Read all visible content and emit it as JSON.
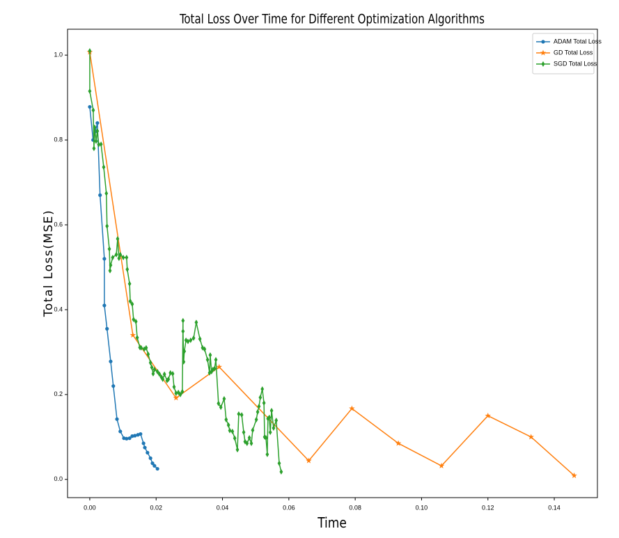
{
  "chart_data": {
    "type": "line",
    "title": "Total Loss Over Time for Different Optimization Algorithms",
    "xlabel": "Time",
    "ylabel": "Total Loss(MSE)",
    "xlim": [
      -0.0067,
      0.153
    ],
    "ylim": [
      -0.043,
      1.061
    ],
    "xticks": [
      {
        "value": 0,
        "label": "0.00"
      },
      {
        "value": 0.02,
        "label": "0.02"
      },
      {
        "value": 0.04,
        "label": "0.04"
      },
      {
        "value": 0.06,
        "label": "0.06"
      },
      {
        "value": 0.08,
        "label": "0.08"
      },
      {
        "value": 0.1,
        "label": "0.10"
      },
      {
        "value": 0.12,
        "label": "0.12"
      },
      {
        "value": 0.14,
        "label": "0.14"
      }
    ],
    "yticks": [
      {
        "value": 0,
        "label": "0.0"
      },
      {
        "value": 0.2,
        "label": "0.2"
      },
      {
        "value": 0.4,
        "label": "0.4"
      },
      {
        "value": 0.6,
        "label": "0.6"
      },
      {
        "value": 0.8,
        "label": "0.8"
      },
      {
        "value": 1,
        "label": "1.0"
      }
    ],
    "legend": "upper right",
    "series": [
      {
        "name": "ADAM Total Loss",
        "color": "#1f77b4",
        "marker": "circle",
        "x": [
          0,
          0.001,
          0.0017,
          0.0023,
          0.0031,
          0.0044,
          0.0044,
          0.0052,
          0.0063,
          0.0071,
          0.0082,
          0.0092,
          0.0103,
          0.0111,
          0.012,
          0.0128,
          0.0136,
          0.0145,
          0.0153,
          0.0162,
          0.0166,
          0.0174,
          0.0183,
          0.0189,
          0.0195,
          0.0204
        ],
        "values": [
          0.878,
          0.8,
          0.82,
          0.84,
          0.67,
          0.52,
          0.41,
          0.355,
          0.278,
          0.22,
          0.142,
          0.113,
          0.097,
          0.096,
          0.097,
          0.102,
          0.103,
          0.105,
          0.107,
          0.085,
          0.075,
          0.063,
          0.05,
          0.038,
          0.032,
          0.025
        ]
      },
      {
        "name": "GD Total Loss",
        "color": "#ff7f0e",
        "marker": "star",
        "x": [
          0,
          0.013,
          0.026,
          0.039,
          0.066,
          0.079,
          0.093,
          0.106,
          0.12,
          0.133,
          0.146
        ],
        "values": [
          1.007,
          0.34,
          0.192,
          0.265,
          0.044,
          0.167,
          0.085,
          0.032,
          0.15,
          0.1,
          0.009
        ]
      },
      {
        "name": "SGD Total Loss",
        "color": "#2ca02c",
        "marker": "diamond",
        "x": [
          0,
          0,
          0.00105,
          0.00126,
          0.00147,
          0.00189,
          0.0023,
          0.0027,
          0.0034,
          0.0042,
          0.005,
          0.0052,
          0.0059,
          0.0061,
          0.0063,
          0.0069,
          0.008,
          0.0084,
          0.0088,
          0.0092,
          0.0101,
          0.0111,
          0.0113,
          0.012,
          0.0122,
          0.0128,
          0.0132,
          0.0139,
          0.0143,
          0.0151,
          0.0155,
          0.0164,
          0.017,
          0.0176,
          0.0183,
          0.0187,
          0.0191,
          0.0195,
          0.0204,
          0.021,
          0.0216,
          0.022,
          0.0225,
          0.0233,
          0.0237,
          0.0243,
          0.025,
          0.0254,
          0.026,
          0.0267,
          0.0273,
          0.0279,
          0.0281,
          0.0281,
          0.0283,
          0.0285,
          0.029,
          0.0296,
          0.0304,
          0.0313,
          0.0321,
          0.0332,
          0.034,
          0.0346,
          0.0355,
          0.0361,
          0.0363,
          0.0367,
          0.0371,
          0.0376,
          0.038,
          0.0388,
          0.0395,
          0.0405,
          0.0411,
          0.0418,
          0.0422,
          0.043,
          0.0437,
          0.0445,
          0.0449,
          0.0458,
          0.0464,
          0.0468,
          0.0474,
          0.0481,
          0.0487,
          0.0491,
          0.0502,
          0.0506,
          0.051,
          0.0514,
          0.052,
          0.0525,
          0.0527,
          0.0531,
          0.0535,
          0.0537,
          0.0541,
          0.0544,
          0.0548,
          0.0554,
          0.0562,
          0.0571,
          0.0577
        ],
        "values": [
          1.01,
          0.915,
          0.87,
          0.78,
          0.83,
          0.797,
          0.821,
          0.789,
          0.79,
          0.736,
          0.674,
          0.597,
          0.543,
          0.492,
          0.505,
          0.523,
          0.53,
          0.567,
          0.521,
          0.53,
          0.523,
          0.523,
          0.495,
          0.461,
          0.42,
          0.413,
          0.377,
          0.372,
          0.334,
          0.311,
          0.31,
          0.307,
          0.31,
          0.295,
          0.275,
          0.264,
          0.249,
          0.259,
          0.254,
          0.248,
          0.241,
          0.236,
          0.248,
          0.233,
          0.236,
          0.251,
          0.249,
          0.218,
          0.203,
          0.205,
          0.2,
          0.207,
          0.374,
          0.349,
          0.277,
          0.302,
          0.328,
          0.325,
          0.328,
          0.333,
          0.37,
          0.331,
          0.31,
          0.307,
          0.282,
          0.251,
          0.293,
          0.254,
          0.259,
          0.261,
          0.282,
          0.179,
          0.17,
          0.19,
          0.141,
          0.128,
          0.115,
          0.113,
          0.097,
          0.07,
          0.154,
          0.152,
          0.111,
          0.089,
          0.085,
          0.098,
          0.085,
          0.116,
          0.141,
          0.159,
          0.172,
          0.193,
          0.213,
          0.18,
          0.1,
          0.098,
          0.059,
          0.143,
          0.146,
          0.111,
          0.162,
          0.121,
          0.139,
          0.038,
          0.018
        ]
      }
    ]
  }
}
